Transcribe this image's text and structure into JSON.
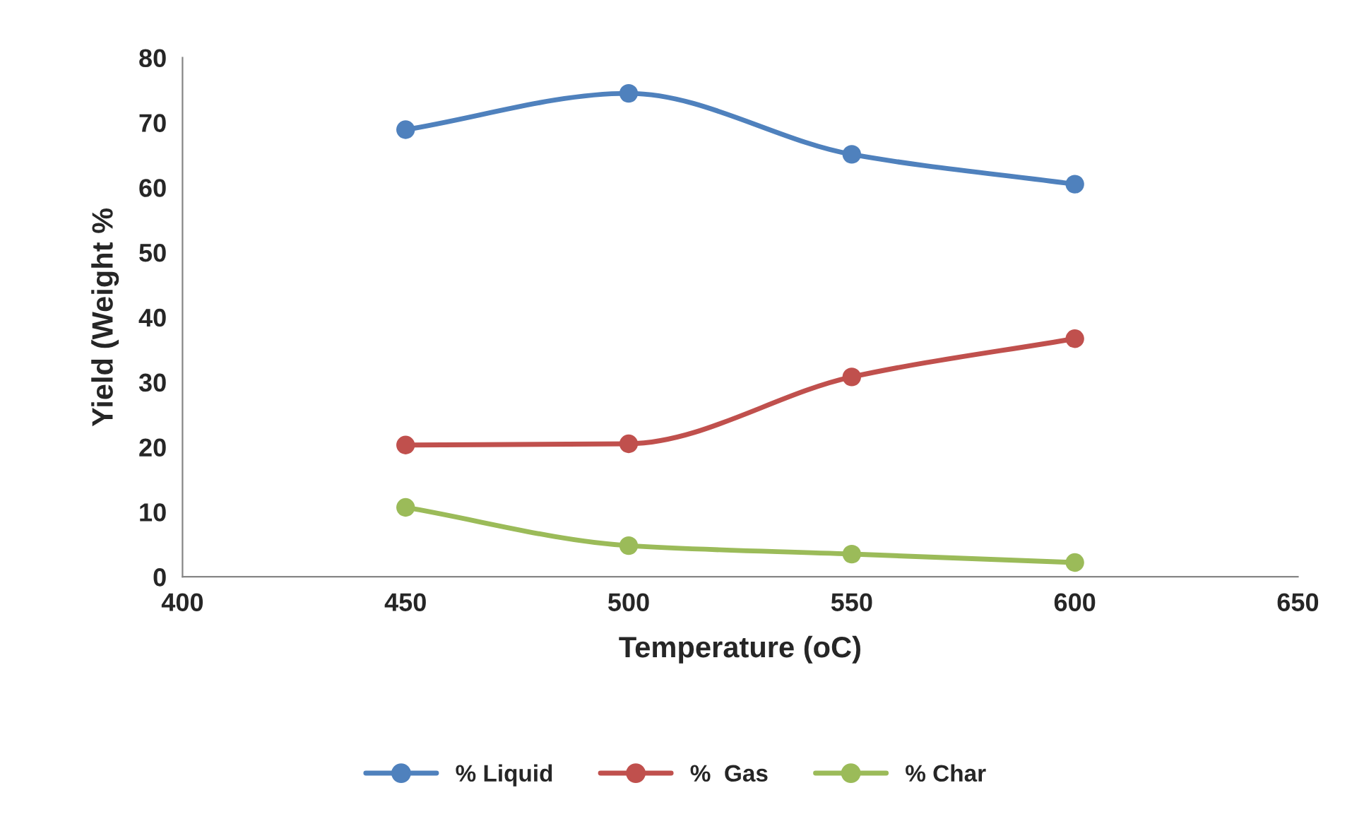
{
  "chart_data": {
    "type": "line",
    "xlabel": "Temperature (oC)",
    "ylabel": "Yield (Weight %",
    "x": [
      450,
      500,
      550,
      600
    ],
    "series": [
      {
        "name": "% Liquid",
        "color": "#4f81bd",
        "values": [
          68.9,
          74.5,
          65.1,
          60.5
        ]
      },
      {
        "name": "%  Gas",
        "color": "#c0504d",
        "values": [
          20.3,
          20.5,
          30.8,
          36.7
        ]
      },
      {
        "name": "% Char",
        "color": "#9bbb59",
        "values": [
          10.7,
          4.8,
          3.5,
          2.2
        ]
      }
    ],
    "xlim": [
      400,
      650
    ],
    "xticks": [
      400,
      450,
      500,
      550,
      600,
      650
    ],
    "ylim": [
      0,
      80
    ],
    "yticks": [
      0,
      10,
      20,
      30,
      40,
      50,
      60,
      70,
      80
    ],
    "grid": false,
    "legend": "bottom",
    "marker": "circle",
    "line_style": "solid"
  }
}
